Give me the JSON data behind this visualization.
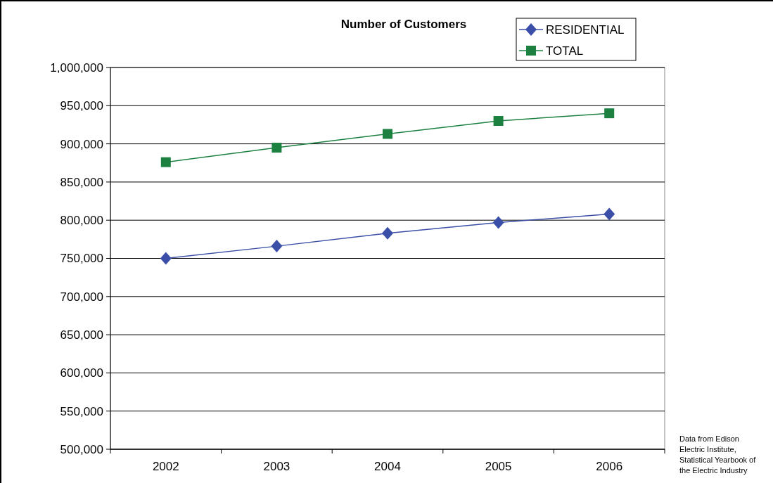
{
  "chart_data": {
    "type": "line",
    "title": "Number of Customers",
    "categories": [
      "2002",
      "2003",
      "2004",
      "2005",
      "2006"
    ],
    "series": [
      {
        "name": "RESIDENTIAL",
        "color": "#3b4fa8",
        "values": [
          750000,
          766000,
          783000,
          797000,
          808000
        ],
        "marker": "diamond"
      },
      {
        "name": "TOTAL",
        "color": "#1b8040",
        "values": [
          876000,
          895000,
          913000,
          930000,
          940000
        ],
        "marker": "square"
      }
    ],
    "ylim": [
      500000,
      1000000
    ],
    "yticks": [
      {
        "value": 500000,
        "label": "500,000"
      },
      {
        "value": 550000,
        "label": "550,000"
      },
      {
        "value": 600000,
        "label": "600,000"
      },
      {
        "value": 650000,
        "label": "650,000"
      },
      {
        "value": 700000,
        "label": "700,000"
      },
      {
        "value": 750000,
        "label": "750,000"
      },
      {
        "value": 800000,
        "label": "800,000"
      },
      {
        "value": 850000,
        "label": "850,000"
      },
      {
        "value": 900000,
        "label": "900,000"
      },
      {
        "value": 950000,
        "label": "950,000"
      },
      {
        "value": 1000000,
        "label": "1,000,000"
      }
    ],
    "grid": "y",
    "legend": "top right",
    "annotations": [
      "Data from Edison Electric Institute, Statistical Yearbook of the Electric Industry"
    ]
  }
}
